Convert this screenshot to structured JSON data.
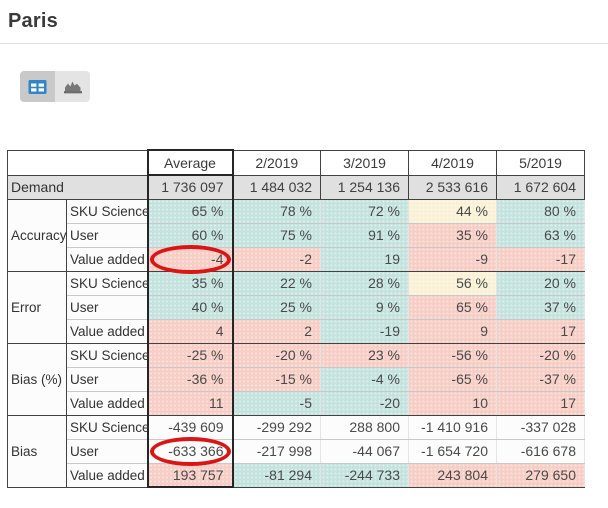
{
  "page": {
    "title": "Paris"
  },
  "toolbar": {
    "view_buttons": [
      {
        "id": "table-view",
        "icon": "table-grid-icon",
        "selected": true
      },
      {
        "id": "chart-view",
        "icon": "area-chart-icon",
        "selected": false
      }
    ]
  },
  "colors": {
    "accent_blue": "#2f86c8",
    "annotation_red": "#dc1414",
    "good_teal": "#c5e3de",
    "bad_pink": "#f7cec5",
    "warn_yellow": "#f8f1d6",
    "demand_gray": "#e0e0e0"
  },
  "table": {
    "columns": [
      "Average",
      "2/2019",
      "3/2019",
      "4/2019",
      "5/2019"
    ],
    "demand": {
      "label": "Demand",
      "values": [
        "1 736 097",
        "1 484 032",
        "1 254 136",
        "2 533 616",
        "1 672 604"
      ]
    },
    "sections": [
      {
        "label": "Accuracy",
        "rows": [
          {
            "label": "SKU Science",
            "cells": [
              {
                "v": "65 %",
                "c": "teal"
              },
              {
                "v": "78 %",
                "c": "teal"
              },
              {
                "v": "72 %",
                "c": "teal"
              },
              {
                "v": "44 %",
                "c": "yellow"
              },
              {
                "v": "80 %",
                "c": "teal"
              }
            ]
          },
          {
            "label": "User",
            "cells": [
              {
                "v": "60 %",
                "c": "teal"
              },
              {
                "v": "75 %",
                "c": "teal"
              },
              {
                "v": "91 %",
                "c": "teal"
              },
              {
                "v": "35 %",
                "c": "pink"
              },
              {
                "v": "63 %",
                "c": "teal"
              }
            ]
          },
          {
            "label": "Value added",
            "cells": [
              {
                "v": "-4",
                "c": "pink",
                "circled": true
              },
              {
                "v": "-2",
                "c": "pink"
              },
              {
                "v": "19",
                "c": "teal"
              },
              {
                "v": "-9",
                "c": "pink"
              },
              {
                "v": "-17",
                "c": "pink"
              }
            ]
          }
        ]
      },
      {
        "label": "Error",
        "rows": [
          {
            "label": "SKU Science",
            "cells": [
              {
                "v": "35 %",
                "c": "teal"
              },
              {
                "v": "22 %",
                "c": "teal"
              },
              {
                "v": "28 %",
                "c": "teal"
              },
              {
                "v": "56 %",
                "c": "yellow"
              },
              {
                "v": "20 %",
                "c": "teal"
              }
            ]
          },
          {
            "label": "User",
            "cells": [
              {
                "v": "40 %",
                "c": "teal"
              },
              {
                "v": "25 %",
                "c": "teal"
              },
              {
                "v": "9 %",
                "c": "teal"
              },
              {
                "v": "65 %",
                "c": "pink"
              },
              {
                "v": "37 %",
                "c": "teal"
              }
            ]
          },
          {
            "label": "Value added",
            "cells": [
              {
                "v": "4",
                "c": "pink"
              },
              {
                "v": "2",
                "c": "pink"
              },
              {
                "v": "-19",
                "c": "teal"
              },
              {
                "v": "9",
                "c": "pink"
              },
              {
                "v": "17",
                "c": "pink"
              }
            ]
          }
        ]
      },
      {
        "label": "Bias (%)",
        "rows": [
          {
            "label": "SKU Science",
            "cells": [
              {
                "v": "-25 %",
                "c": "pink"
              },
              {
                "v": "-20 %",
                "c": "pink"
              },
              {
                "v": "23 %",
                "c": "pink"
              },
              {
                "v": "-56 %",
                "c": "pink"
              },
              {
                "v": "-20 %",
                "c": "pink"
              }
            ]
          },
          {
            "label": "User",
            "cells": [
              {
                "v": "-36 %",
                "c": "pink"
              },
              {
                "v": "-15 %",
                "c": "pink"
              },
              {
                "v": "-4 %",
                "c": "teal"
              },
              {
                "v": "-65 %",
                "c": "pink"
              },
              {
                "v": "-37 %",
                "c": "pink"
              }
            ]
          },
          {
            "label": "Value added",
            "cells": [
              {
                "v": "11",
                "c": "pink"
              },
              {
                "v": "-5",
                "c": "teal"
              },
              {
                "v": "-20",
                "c": "teal"
              },
              {
                "v": "10",
                "c": "pink"
              },
              {
                "v": "17",
                "c": "pink"
              }
            ]
          }
        ]
      },
      {
        "label": "Bias",
        "rows": [
          {
            "label": "SKU Science",
            "cells": [
              {
                "v": "-439 609",
                "c": "none"
              },
              {
                "v": "-299 292",
                "c": "none"
              },
              {
                "v": "288 800",
                "c": "none"
              },
              {
                "v": "-1 410 916",
                "c": "none"
              },
              {
                "v": "-337 028",
                "c": "none"
              }
            ]
          },
          {
            "label": "User",
            "cells": [
              {
                "v": "-633 366",
                "c": "none",
                "circled": true
              },
              {
                "v": "-217 998",
                "c": "none"
              },
              {
                "v": "-44 067",
                "c": "none"
              },
              {
                "v": "-1 654 720",
                "c": "none"
              },
              {
                "v": "-616 678",
                "c": "none"
              }
            ]
          },
          {
            "label": "Value added",
            "cells": [
              {
                "v": "193 757",
                "c": "pink"
              },
              {
                "v": "-81 294",
                "c": "teal"
              },
              {
                "v": "-244 733",
                "c": "teal"
              },
              {
                "v": "243 804",
                "c": "pink"
              },
              {
                "v": "279 650",
                "c": "pink"
              }
            ]
          }
        ]
      }
    ]
  }
}
